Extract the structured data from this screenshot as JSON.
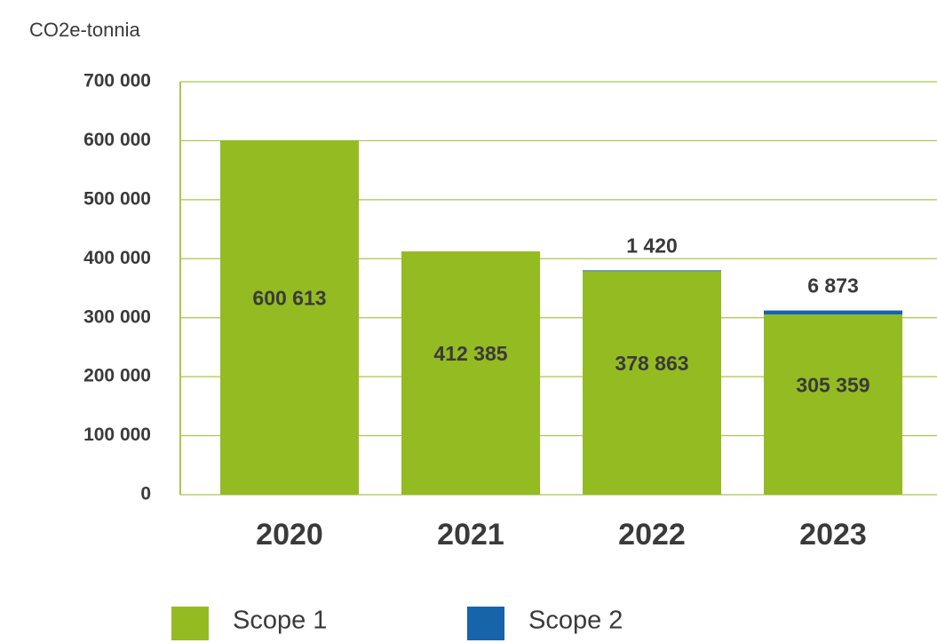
{
  "chart_data": {
    "type": "stacked_bar",
    "y_axis_label": "CO2e-tonnia",
    "categories": [
      "2020",
      "2021",
      "2022",
      "2023"
    ],
    "series": [
      {
        "name": "Scope 1",
        "color": "#94bb22",
        "values": [
          600613,
          412385,
          378863,
          305359
        ],
        "value_labels": [
          "600 613",
          "412 385",
          "378 863",
          "305 359"
        ]
      },
      {
        "name": "Scope 2",
        "color": "#1764ab",
        "values": [
          null,
          null,
          1420,
          6873
        ],
        "value_labels": [
          null,
          null,
          "1 420",
          "6 873"
        ]
      }
    ],
    "ylim": [
      0,
      700000
    ],
    "yticks": [
      0,
      {
        "value": 100000,
        "label": "100 000"
      },
      {
        "value": 200000,
        "label": "200 000"
      },
      {
        "value": 300000,
        "label": "300 000"
      },
      {
        "value": 400000,
        "label": "400 000"
      },
      {
        "value": 500000,
        "label": "500 000"
      },
      {
        "value": 600000,
        "label": "600 000"
      },
      {
        "value": 700000,
        "label": "700 000"
      }
    ],
    "grid": true
  }
}
